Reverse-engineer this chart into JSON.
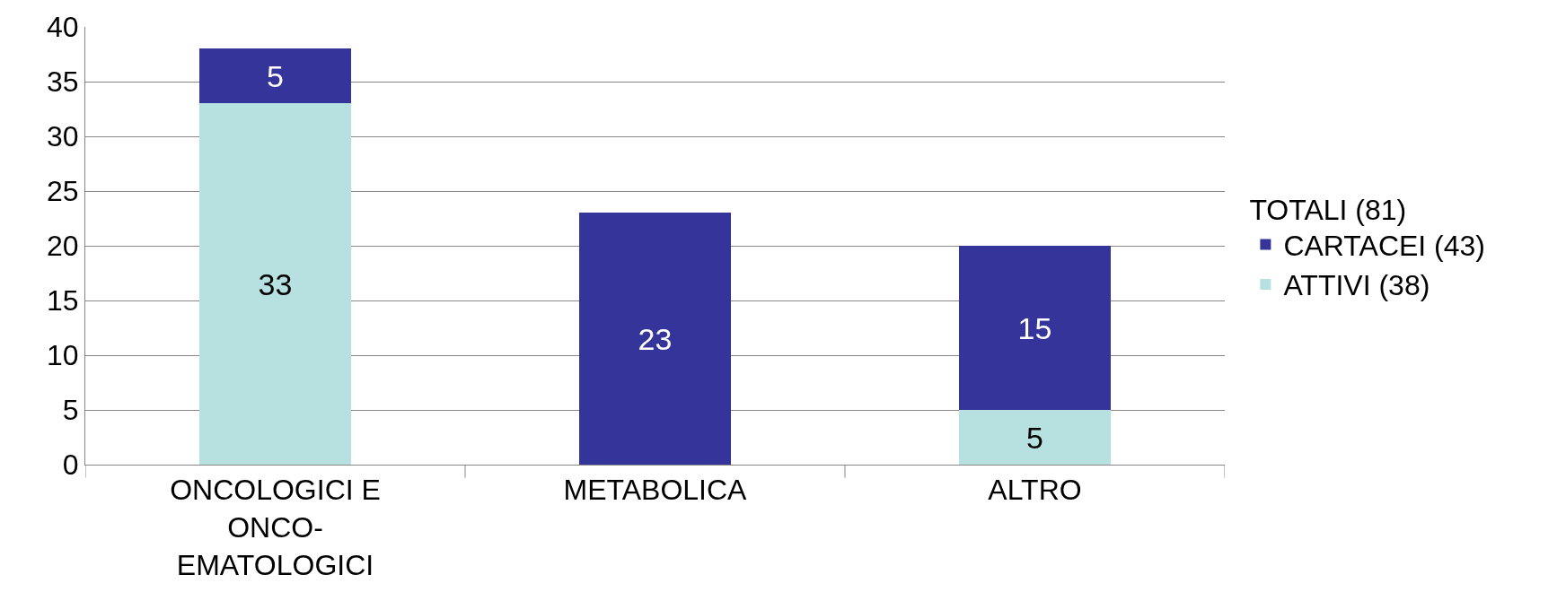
{
  "chart_data": {
    "type": "bar",
    "stacked": true,
    "categories": [
      "ONCOLOGICI E ONCO-EMATOLOGICI",
      "METABOLICA",
      "ALTRO"
    ],
    "series": [
      {
        "name": "ATTIVI (38)",
        "color": "#b7e1e1",
        "values": [
          33,
          null,
          5
        ]
      },
      {
        "name": "CARTACEI (43)",
        "color": "#35349a",
        "values": [
          5,
          23,
          15
        ]
      }
    ],
    "legend_title": "TOTALI (81)",
    "legend": "right",
    "ylim": [
      0,
      40
    ],
    "yticks": [
      0,
      5,
      10,
      15,
      20,
      25,
      30,
      35,
      40
    ],
    "grid": "y",
    "data_labels": true
  }
}
